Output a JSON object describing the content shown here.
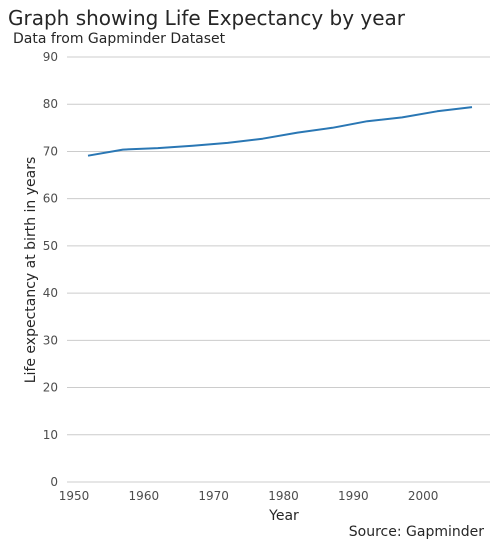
{
  "chart_data": {
    "type": "line",
    "title": "Graph showing Life Expectancy by year",
    "subtitle": "Data from Gapminder Dataset",
    "source": "Source: Gapminder",
    "xlabel": "Year",
    "ylabel": "Life expectancy at birth in years",
    "xlim": [
      1950,
      2010
    ],
    "ylim": [
      0,
      90
    ],
    "xticks": [
      1950,
      1960,
      1970,
      1980,
      1990,
      2000
    ],
    "yticks": [
      0,
      10,
      20,
      30,
      40,
      50,
      60,
      70,
      80,
      90
    ],
    "grid": "horizontal",
    "line_color": "#2a77b4",
    "grid_color": "#cccccc",
    "series": [
      {
        "x": [
          1952,
          1957,
          1962,
          1967,
          1972,
          1977,
          1982,
          1987,
          1992,
          1997,
          2002,
          2007
        ],
        "values": [
          69.1,
          70.4,
          70.7,
          71.2,
          71.8,
          72.7,
          74.0,
          75.0,
          76.4,
          77.2,
          78.5,
          79.4
        ]
      }
    ]
  }
}
